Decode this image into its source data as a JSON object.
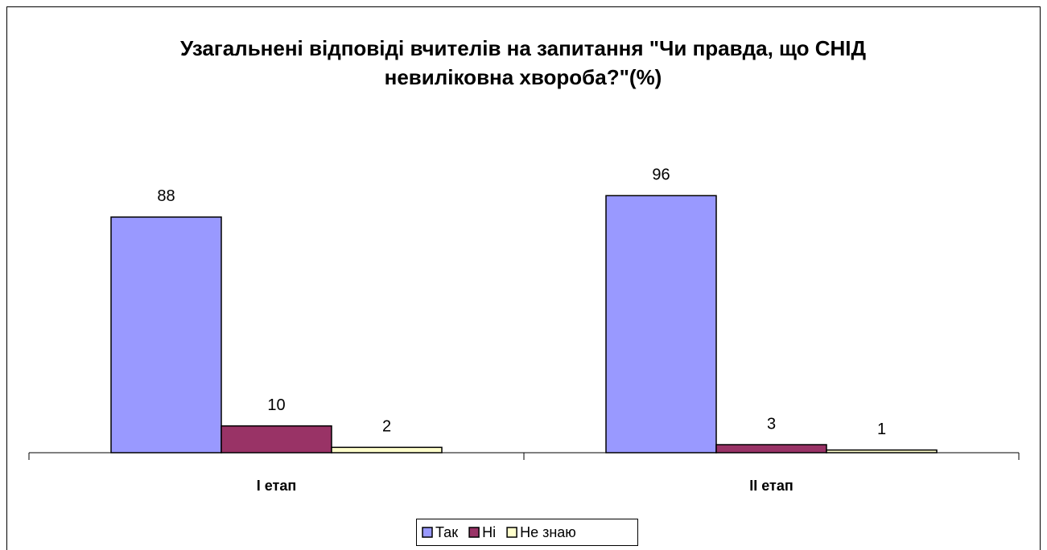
{
  "chart_data": {
    "type": "bar",
    "title": "Узагальнені відповіді вчителів на запитання \"Чи правда, що СНІД невиліковна хвороба?\"(%)",
    "categories": [
      "I етап",
      "II етап"
    ],
    "series": [
      {
        "name": "Так",
        "color": "#9999ff",
        "values": [
          88,
          96
        ]
      },
      {
        "name": "Ні",
        "color": "#993366",
        "values": [
          10,
          3
        ]
      },
      {
        "name": "Не знаю",
        "color": "#ffffcc",
        "values": [
          2,
          1
        ]
      }
    ],
    "legend": "bottom"
  }
}
